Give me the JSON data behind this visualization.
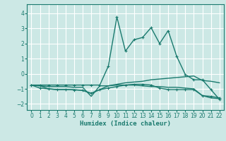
{
  "xlabel": "Humidex (Indice chaleur)",
  "ylabel": "",
  "xlim": [
    -0.5,
    22.5
  ],
  "ylim": [
    -2.4,
    4.6
  ],
  "yticks": [
    -2,
    -1,
    0,
    1,
    2,
    3,
    4
  ],
  "xticks": [
    0,
    1,
    2,
    3,
    4,
    5,
    6,
    7,
    8,
    9,
    10,
    11,
    12,
    13,
    14,
    15,
    16,
    17,
    18,
    19,
    20,
    21,
    22
  ],
  "background_color": "#cce8e5",
  "grid_color": "#ffffff",
  "line_color": "#1a7a6e",
  "series": [
    {
      "x": [
        0,
        1,
        2,
        3,
        4,
        5,
        6,
        7,
        8,
        9,
        10,
        11,
        12,
        13,
        14,
        15,
        16,
        17,
        18,
        19,
        20,
        21,
        22
      ],
      "y": [
        -0.75,
        -0.8,
        -0.85,
        -0.85,
        -0.85,
        -0.9,
        -0.9,
        -1.5,
        -0.8,
        -0.8,
        -0.7,
        -0.6,
        -0.55,
        -0.5,
        -0.4,
        -0.35,
        -0.3,
        -0.25,
        -0.2,
        -0.15,
        -0.45,
        -0.5,
        -0.6
      ],
      "marker": null,
      "linewidth": 1.0
    },
    {
      "x": [
        0,
        1,
        2,
        3,
        4,
        5,
        6,
        7,
        8,
        9,
        10,
        11,
        12,
        13,
        14,
        15,
        16,
        17,
        18,
        19,
        20,
        21,
        22
      ],
      "y": [
        -0.75,
        -0.8,
        -1.0,
        -1.05,
        -1.05,
        -1.05,
        -1.1,
        -1.3,
        -1.05,
        -0.8,
        -0.75,
        -0.75,
        -0.75,
        -0.8,
        -0.85,
        -0.85,
        -0.9,
        -0.9,
        -0.95,
        -1.0,
        -1.45,
        -1.6,
        -1.65
      ],
      "marker": null,
      "linewidth": 1.0
    },
    {
      "x": [
        0,
        1,
        2,
        3,
        4,
        5,
        6,
        7,
        8,
        9,
        10,
        11,
        12,
        13,
        14,
        15,
        16,
        17,
        18,
        19,
        20,
        21,
        22
      ],
      "y": [
        -0.75,
        -0.95,
        -1.0,
        -1.05,
        -1.05,
        -1.07,
        -1.1,
        -1.3,
        -1.05,
        -0.95,
        -0.85,
        -0.75,
        -0.7,
        -0.7,
        -0.75,
        -0.95,
        -1.05,
        -1.05,
        -1.05,
        -1.05,
        -1.45,
        -1.5,
        -1.6
      ],
      "marker": "+",
      "linewidth": 1.0
    },
    {
      "x": [
        0,
        1,
        2,
        3,
        4,
        5,
        6,
        7,
        8,
        9,
        10,
        11,
        12,
        13,
        14,
        15,
        16,
        17,
        18,
        19,
        20,
        21,
        22
      ],
      "y": [
        -0.75,
        -0.75,
        -0.75,
        -0.75,
        -0.75,
        -0.75,
        -0.75,
        -0.75,
        -0.75,
        0.5,
        3.75,
        1.5,
        2.25,
        2.4,
        3.05,
        2.0,
        2.85,
        1.15,
        -0.05,
        -0.4,
        -0.4,
        -1.05,
        -1.7
      ],
      "marker": "+",
      "linewidth": 1.0
    }
  ]
}
